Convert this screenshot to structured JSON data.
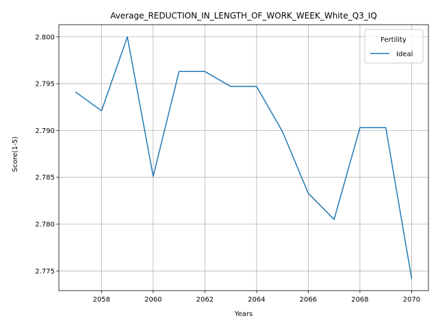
{
  "chart_data": {
    "type": "line",
    "title": "Average_REDUCTION_IN_LENGTH_OF_WORK_WEEK_White_Q3_IQ",
    "xlabel": "Years",
    "ylabel": "Score(1-5)",
    "x": [
      2057,
      2058,
      2059,
      2060,
      2061,
      2062,
      2063,
      2064,
      2065,
      2066,
      2067,
      2068,
      2069,
      2070
    ],
    "series": [
      {
        "name": "Ideal",
        "color": "#1f77b4",
        "values": [
          2.7941,
          2.7921,
          2.8,
          2.7851,
          2.7963,
          2.7963,
          2.7947,
          2.7947,
          2.7899,
          2.7833,
          2.7805,
          2.7903,
          2.7903,
          2.7742
        ]
      }
    ],
    "xlim": [
      2056.35,
      2070.65
    ],
    "ylim": [
      2.7729,
      2.8013
    ],
    "xticks": [
      2058,
      2060,
      2062,
      2064,
      2066,
      2068,
      2070
    ],
    "yticks": [
      2.775,
      2.78,
      2.785,
      2.79,
      2.795,
      2.8
    ],
    "ytick_labels": [
      "2.775",
      "2.780",
      "2.785",
      "2.790",
      "2.795",
      "2.800"
    ],
    "grid": true,
    "legend": {
      "title": "Fertility",
      "placement": "top-right"
    }
  }
}
